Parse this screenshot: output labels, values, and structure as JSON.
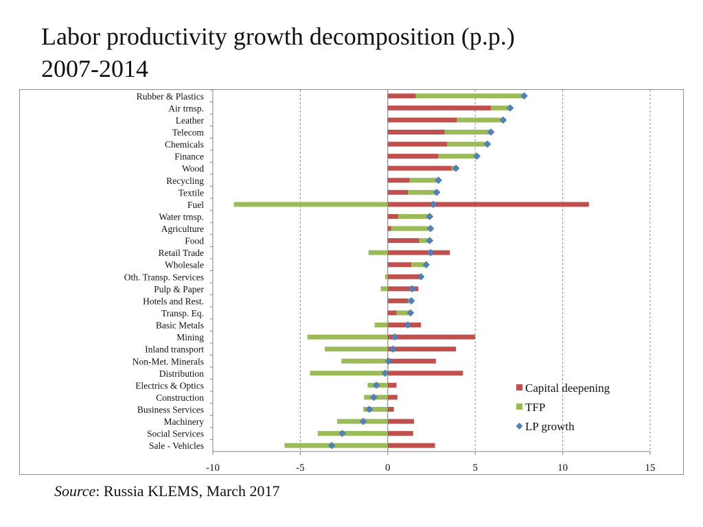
{
  "title_line1": "Labor productivity growth decomposition (p.p.)",
  "title_line2": "2007-2014",
  "source_label": "Source",
  "source_text": ": Russia KLEMS, March 2017",
  "chart_data": {
    "type": "bar",
    "orientation": "horizontal-stacked",
    "categories": [
      "Rubber & Plastics",
      "Air trnsp.",
      "Leather",
      "Telecom",
      "Chemicals",
      "Finance",
      "Wood",
      "Recycling",
      "Textile",
      "Fuel",
      "Water trnsp.",
      "Agriculture",
      "Food",
      "Retail Trade",
      "Wholesale",
      "Oth. Transp. Services",
      "Pulp & Paper",
      "Hotels and Rest.",
      "Transp. Eq.",
      "Basic Metals",
      "Mining",
      "Inland transport",
      "Non-Met. Minerals",
      "Distribution",
      "Electrics & Optics",
      "Construction",
      "Business Services",
      "Machinery",
      "Social Services",
      "Sale - Vehicles"
    ],
    "series": [
      {
        "name": "Capital deepening",
        "color": "#c0504d",
        "values": [
          1.6,
          5.9,
          3.95,
          3.25,
          3.4,
          2.9,
          3.65,
          1.25,
          1.15,
          11.5,
          0.6,
          0.2,
          1.8,
          3.55,
          1.35,
          1.9,
          1.75,
          1.15,
          0.5,
          1.9,
          5.0,
          3.9,
          2.75,
          4.3,
          0.5,
          0.55,
          0.35,
          1.5,
          1.45,
          2.7
        ]
      },
      {
        "name": "TFP",
        "color": "#9bbb59",
        "values": [
          6.2,
          1.1,
          2.7,
          2.6,
          2.3,
          2.2,
          0.25,
          1.7,
          1.65,
          -8.8,
          1.85,
          2.25,
          0.65,
          -1.1,
          0.85,
          -0.15,
          -0.4,
          0.3,
          0.8,
          -0.75,
          -4.6,
          -3.6,
          -2.65,
          -4.45,
          -1.15,
          -1.35,
          -1.4,
          -2.9,
          -4.0,
          -5.9
        ]
      },
      {
        "name": "LP growth",
        "color": "#4f81bd",
        "marker": "diamond",
        "values": [
          7.8,
          7.0,
          6.6,
          5.9,
          5.7,
          5.1,
          3.9,
          2.9,
          2.8,
          2.6,
          2.4,
          2.45,
          2.4,
          2.45,
          2.2,
          1.9,
          1.4,
          1.35,
          1.3,
          1.15,
          0.4,
          0.3,
          0.05,
          -0.15,
          -0.65,
          -0.8,
          -1.05,
          -1.4,
          -2.6,
          -3.2
        ]
      }
    ],
    "xlim": [
      -10,
      15
    ],
    "xticks": [
      -10,
      -5,
      0,
      5,
      10,
      15
    ],
    "xtick_labels": [
      "-10",
      "-5",
      "0",
      "5",
      "10",
      "15"
    ],
    "grid": "vertical dashed",
    "legend": "bottom-right",
    "legend_labels": [
      "Capital deepening",
      "TFP",
      "LP growth"
    ],
    "title": "",
    "xlabel": "",
    "ylabel": ""
  }
}
